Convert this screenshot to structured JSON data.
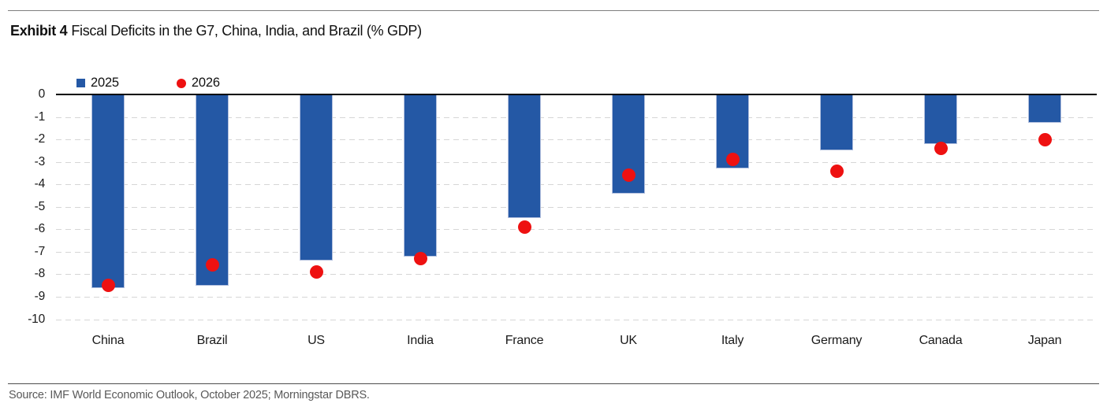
{
  "page": {
    "title_label": "Exhibit 4",
    "title_text": "Fiscal Deficits in the G7, China, India, and Brazil (% GDP)",
    "source_note": "Source: IMF World Economic Outlook, October 2025; Morningstar DBRS."
  },
  "legend": {
    "items": [
      {
        "label": "2025",
        "marker": "square",
        "color": "#2458a5"
      },
      {
        "label": "2026",
        "marker": "circle",
        "color": "#ee1111"
      }
    ]
  },
  "colors": {
    "bar_2025": "#2458a5",
    "bar_edge": "#b3c0de",
    "dot_2026": "#ee1111",
    "gridline": "#d6d6d6",
    "zero_axis": "#000000",
    "source_text": "#595959"
  },
  "chart_data": {
    "type": "bar",
    "title": "Exhibit 4 Fiscal Deficits in the G7, China, India, and Brazil (% GDP)",
    "categories": [
      "China",
      "Brazil",
      "US",
      "India",
      "France",
      "UK",
      "Italy",
      "Germany",
      "Canada",
      "Japan"
    ],
    "series": [
      {
        "name": "2025",
        "type": "bar",
        "color": "#2458a5",
        "values": [
          -8.6,
          -8.5,
          -7.4,
          -7.2,
          -5.5,
          -4.4,
          -3.3,
          -2.5,
          -2.2,
          -1.25
        ]
      },
      {
        "name": "2026",
        "type": "scatter",
        "color": "#ee1111",
        "values": [
          -8.5,
          -7.6,
          -7.9,
          -7.3,
          -5.9,
          -3.6,
          -2.9,
          -3.4,
          -2.4,
          -2.0
        ]
      }
    ],
    "xlabel": "",
    "ylabel": "",
    "ylim": [
      -10,
      0
    ],
    "yticks": [
      0,
      -1,
      -2,
      -3,
      -4,
      -5,
      -6,
      -7,
      -8,
      -9,
      -10
    ],
    "grid": "horizontal-dashed",
    "legend_position": "top-left"
  }
}
